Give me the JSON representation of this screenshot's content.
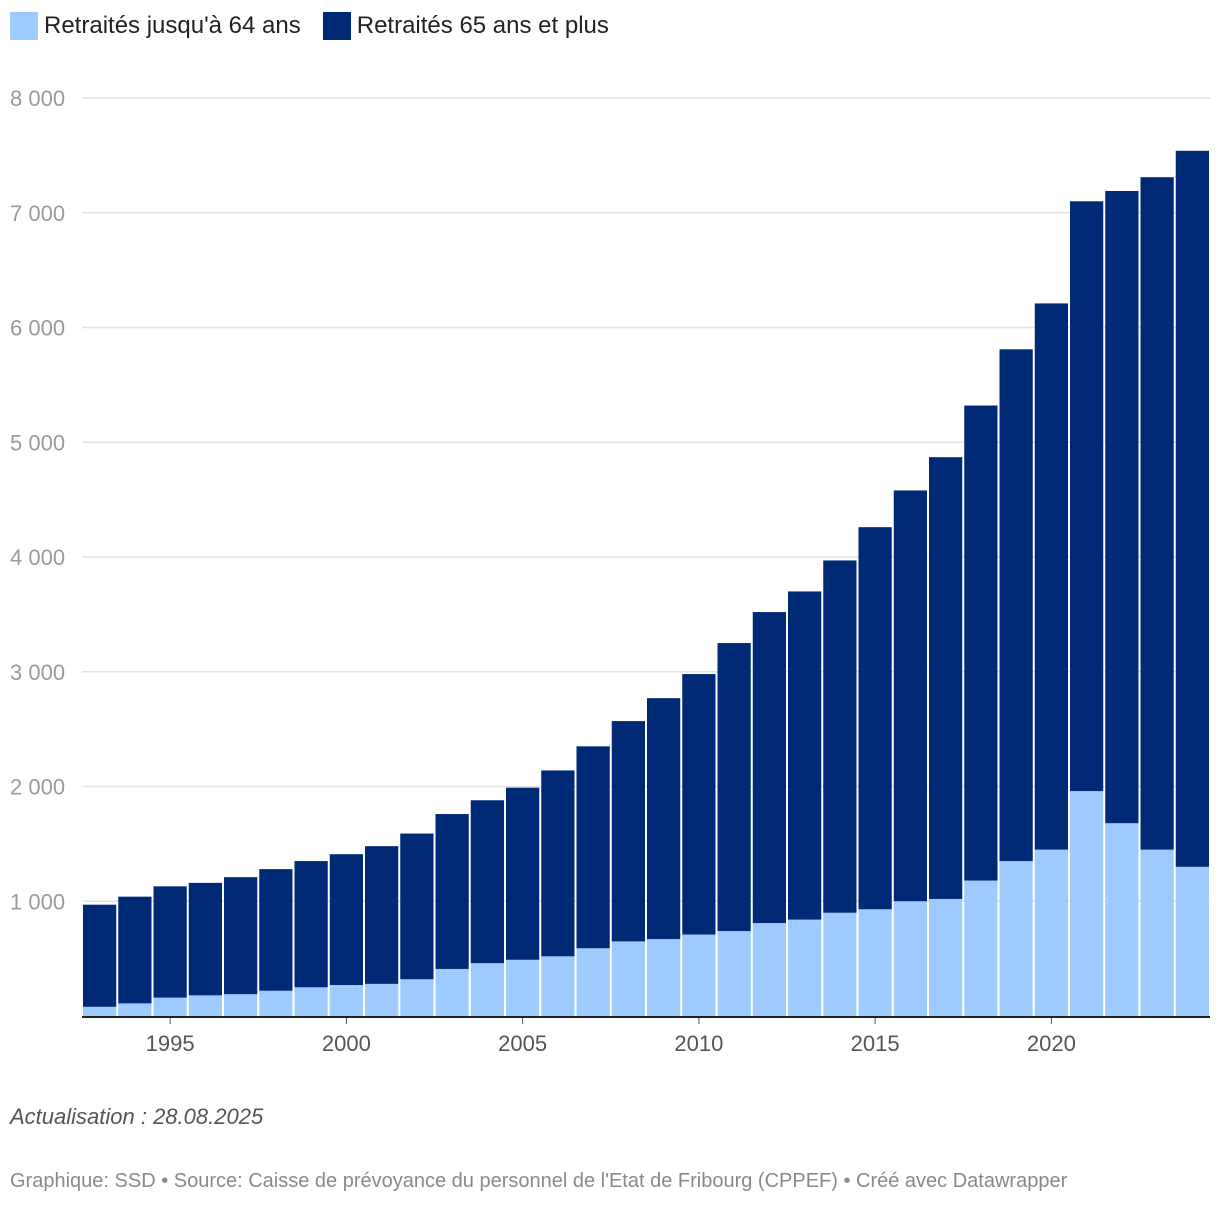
{
  "legend": {
    "items": [
      {
        "label": "Retraités jusqu'à 64 ans",
        "color": "#9ecbff"
      },
      {
        "label": "Retraités 65 ans et plus",
        "color": "#002a76"
      }
    ]
  },
  "chart_data": {
    "type": "bar",
    "stacked": true,
    "title": "",
    "xlabel": "",
    "ylabel": "",
    "ylim": [
      0,
      8000
    ],
    "yticks": [
      1000,
      2000,
      3000,
      4000,
      5000,
      6000,
      7000,
      8000
    ],
    "ytick_labels": [
      "1 000",
      "2 000",
      "3 000",
      "4 000",
      "5 000",
      "6 000",
      "7 000",
      "8 000"
    ],
    "xticks": [
      "1995",
      "2000",
      "2005",
      "2010",
      "2015",
      "2020"
    ],
    "grid": true,
    "legend_position": "top-left",
    "categories": [
      "1993",
      "1994",
      "1995",
      "1996",
      "1997",
      "1998",
      "1999",
      "2000",
      "2001",
      "2002",
      "2003",
      "2004",
      "2005",
      "2006",
      "2007",
      "2008",
      "2009",
      "2010",
      "2011",
      "2012",
      "2013",
      "2014",
      "2015",
      "2016",
      "2017",
      "2018",
      "2019",
      "2020",
      "2021",
      "2022",
      "2023",
      "2024"
    ],
    "series": [
      {
        "name": "Retraités jusqu'à 64 ans",
        "color": "#9ecbff",
        "values": [
          80,
          110,
          160,
          180,
          190,
          220,
          250,
          270,
          280,
          320,
          410,
          460,
          490,
          520,
          590,
          650,
          670,
          710,
          740,
          810,
          840,
          900,
          930,
          1000,
          1020,
          1180,
          1350,
          1450,
          1960,
          1680,
          1450,
          1300
        ]
      },
      {
        "name": "Retraités 65 ans et plus",
        "color": "#002a76",
        "values": [
          890,
          930,
          970,
          980,
          1020,
          1060,
          1100,
          1140,
          1200,
          1270,
          1350,
          1420,
          1500,
          1620,
          1760,
          1920,
          2100,
          2270,
          2510,
          2710,
          2860,
          3070,
          3330,
          3580,
          3850,
          4140,
          4460,
          4760,
          5140,
          5510,
          5860,
          6240
        ]
      }
    ]
  },
  "update_note": "Actualisation : 28.08.2025",
  "footer": "Graphique: SSD • Source: Caisse de prévoyance du personnel de l'Etat de Fribourg (CPPEF) • Créé avec Datawrapper"
}
